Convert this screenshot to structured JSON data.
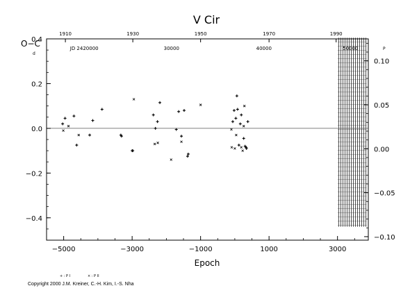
{
  "chart_data": {
    "type": "scatter",
    "title": "V  Cir",
    "ylabel": "O−C",
    "ylabel_unit": "d",
    "xlabel": "Epoch",
    "xlim": [
      -5500,
      3900
    ],
    "ylim": [
      -0.5,
      0.4
    ],
    "right_ylim": [
      -0.104,
      0.125
    ],
    "x_ticks": [
      -5000,
      -3000,
      -1000,
      1000,
      3000
    ],
    "x_tick_labels": [
      "−5000",
      "−3000",
      "−1000",
      "1000",
      "3000"
    ],
    "y_ticks": [
      0.4,
      0.2,
      0.0,
      -0.2,
      -0.4
    ],
    "y_tick_labels": [
      "0.4",
      "0.2",
      "0.0",
      "−0.2",
      "−0.4"
    ],
    "right_ticks": [
      0.1,
      0.05,
      0.0,
      -0.05,
      -0.1
    ],
    "right_tick_labels": [
      "0.10",
      "0.05",
      "0.00",
      "−0.05",
      "−0.10"
    ],
    "right_unit": "P",
    "top_year_ticks": {
      "labels": [
        "1910",
        "1930",
        "1950",
        "1970",
        "1990"
      ],
      "epochs": [
        -4950,
        -2980,
        -1000,
        1000,
        2960
      ]
    },
    "top_jd_ticks": {
      "labels": [
        "JD 2420000",
        "30000",
        "40000",
        "50000"
      ],
      "epochs": [
        -4400,
        -1850,
        850,
        3380
      ]
    },
    "zero_line": 0.0,
    "hatched_region": {
      "x_from": 3000,
      "x_to": 3850
    },
    "legend": {
      "p1": "+ : P I",
      "p2": "× : P II",
      "position": "bottom-left"
    },
    "series": [
      {
        "name": "P I",
        "marker": "plus",
        "points": [
          [
            -5030,
            0.02
          ],
          [
            -4960,
            0.045
          ],
          [
            -4700,
            0.055
          ],
          [
            -4620,
            -0.075
          ],
          [
            -4240,
            -0.03
          ],
          [
            -4150,
            0.035
          ],
          [
            -3880,
            0.085
          ],
          [
            -3310,
            -0.035
          ],
          [
            -3330,
            -0.03
          ],
          [
            -2980,
            -0.1
          ],
          [
            -3000,
            -0.1
          ],
          [
            -2380,
            0.06
          ],
          [
            -2320,
            0.0
          ],
          [
            -2260,
            0.03
          ],
          [
            -2190,
            0.115
          ],
          [
            -1710,
            -0.005
          ],
          [
            -1640,
            0.075
          ],
          [
            -1560,
            -0.035
          ],
          [
            -1480,
            0.08
          ],
          [
            -1380,
            -0.125
          ],
          [
            -1360,
            -0.115
          ],
          [
            -60,
            0.03
          ],
          [
            -20,
            0.08
          ],
          [
            30,
            0.045
          ],
          [
            60,
            0.145
          ],
          [
            80,
            0.085
          ],
          [
            120,
            -0.075
          ],
          [
            160,
            0.02
          ],
          [
            190,
            0.06
          ],
          [
            260,
            -0.045
          ],
          [
            300,
            -0.08
          ],
          [
            380,
            0.03
          ],
          [
            330,
            -0.085
          ],
          [
            340,
            -0.09
          ]
        ]
      },
      {
        "name": "P II",
        "marker": "cross",
        "points": [
          [
            -5010,
            -0.01
          ],
          [
            -4860,
            0.01
          ],
          [
            -4560,
            -0.03
          ],
          [
            -2950,
            0.13
          ],
          [
            -2340,
            -0.07
          ],
          [
            -2250,
            -0.065
          ],
          [
            -1860,
            -0.14
          ],
          [
            -1000,
            0.105
          ],
          [
            -1560,
            -0.06
          ],
          [
            -100,
            -0.005
          ],
          [
            -90,
            -0.085
          ],
          [
            0,
            -0.09
          ],
          [
            40,
            -0.03
          ],
          [
            190,
            -0.085
          ],
          [
            230,
            -0.1
          ],
          [
            280,
            0.1
          ],
          [
            260,
            0.01
          ]
        ]
      }
    ]
  },
  "copyright": "Copyright 2000 J.M. Kreiner, C.-H. Kim, I.-S. Nha"
}
